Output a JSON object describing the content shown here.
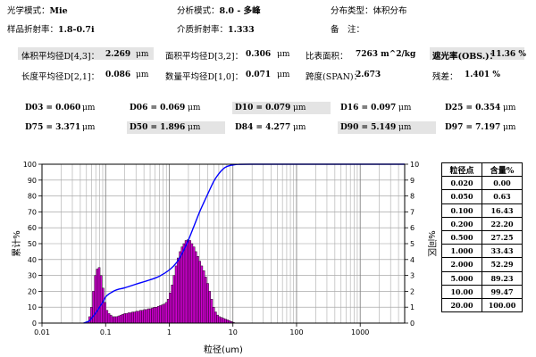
{
  "header": {
    "optical_model_label": "光学模式：",
    "optical_model_value": "Mie",
    "analysis_mode_label": "分析模式：",
    "analysis_mode_value": "8.0 - 多峰",
    "distribution_type_label": "分布类型：",
    "distribution_type_value": "体积分布",
    "sample_ri_label": "样品折射率：",
    "sample_ri_value": "1.8-0.7i",
    "medium_ri_label": "介质折射率：",
    "medium_ri_value": "1.333",
    "remarks_label": "备　注："
  },
  "summary": {
    "d43_label": "体积平均径D[4,3]：",
    "d43_value": "2.269",
    "d43_unit": "μm",
    "d32_label": "面积平均径D[3,2]：",
    "d32_value": "0.306",
    "d32_unit": "μm",
    "ssa_label": "比表面积：",
    "ssa_value": "7263  m^2/kg",
    "obs_label": "遮光率(OBS.)：",
    "obs_value": "11.36 %",
    "d21_label": "长度平均径D[2,1]：",
    "d21_value": "0.086",
    "d21_unit": "μm",
    "d10mean_label": "数量平均径D[1,0]：",
    "d10mean_value": "0.071",
    "d10mean_unit": "μm",
    "span_label": "跨度(SPAN)：",
    "span_value": "2.673",
    "residual_label": "残差：",
    "residual_value": "1.401 %"
  },
  "percentiles": [
    {
      "label": "D03 = 0.060",
      "unit": "μm"
    },
    {
      "label": "D06 = 0.069",
      "unit": "μm"
    },
    {
      "label": "D10 = 0.079",
      "unit": "μm"
    },
    {
      "label": "D16 = 0.097",
      "unit": "μm"
    },
    {
      "label": "D25 = 0.354",
      "unit": "μm"
    },
    {
      "label": "D75 = 3.371",
      "unit": "μm"
    },
    {
      "label": "D50 = 1.896",
      "unit": "μm"
    },
    {
      "label": "D84 = 4.277",
      "unit": "μm"
    },
    {
      "label": "D90 = 5.149",
      "unit": "μm"
    },
    {
      "label": "D97 = 7.197",
      "unit": "μm"
    }
  ],
  "table": {
    "col_size": "粒径点",
    "col_content": "含量%",
    "rows": [
      {
        "size": "0.020",
        "content": "0.00"
      },
      {
        "size": "0.050",
        "content": "0.63"
      },
      {
        "size": "0.100",
        "content": "16.43"
      },
      {
        "size": "0.200",
        "content": "22.20"
      },
      {
        "size": "0.500",
        "content": "27.25"
      },
      {
        "size": "1.000",
        "content": "33.43"
      },
      {
        "size": "2.000",
        "content": "52.29"
      },
      {
        "size": "5.000",
        "content": "89.23"
      },
      {
        "size": "10.00",
        "content": "99.47"
      },
      {
        "size": "20.00",
        "content": "100.00"
      }
    ]
  },
  "chart_data": {
    "type": "bar",
    "xlabel": "粒径(um)",
    "ylabel": "累计%",
    "y2label": "%间区",
    "xscale": "log",
    "xlim": [
      0.01,
      5000
    ],
    "ylim": [
      0,
      100
    ],
    "y2lim": [
      0,
      10
    ],
    "grid": true,
    "x_ticks": [
      "0.01",
      "0.1",
      "1",
      "10",
      "100",
      "1000"
    ],
    "y_ticks": [
      "0",
      "10",
      "20",
      "30",
      "40",
      "50",
      "60",
      "70",
      "80",
      "90",
      "100"
    ],
    "y2_ticks": [
      "0",
      "1",
      "2",
      "3",
      "4",
      "5",
      "6",
      "7",
      "8",
      "9",
      "10"
    ],
    "bar_color": "#cc00cc",
    "line_color": "#0000ff",
    "differential": {
      "x": [
        0.052,
        0.056,
        0.06,
        0.064,
        0.069,
        0.074,
        0.079,
        0.085,
        0.091,
        0.098,
        0.105,
        0.113,
        0.121,
        0.13,
        0.14,
        0.15,
        0.161,
        0.173,
        0.186,
        0.2,
        0.215,
        0.231,
        0.248,
        0.266,
        0.286,
        0.307,
        0.33,
        0.354,
        0.38,
        0.408,
        0.439,
        0.471,
        0.506,
        0.543,
        0.584,
        0.627,
        0.673,
        0.723,
        0.777,
        0.834,
        0.896,
        0.962,
        1.03,
        1.11,
        1.19,
        1.28,
        1.38,
        1.48,
        1.59,
        1.7,
        1.83,
        1.97,
        2.11,
        2.27,
        2.44,
        2.62,
        2.81,
        3.02,
        3.24,
        3.48,
        3.74,
        4.02,
        4.31,
        4.63,
        4.98,
        5.35,
        5.74,
        6.17,
        6.62,
        7.11,
        7.64,
        8.2,
        8.81,
        9.46,
        10.16
      ],
      "y": [
        0.08,
        0.4,
        1.0,
        2.0,
        3.0,
        3.4,
        3.5,
        3.0,
        2.2,
        1.3,
        0.8,
        0.6,
        0.5,
        0.4,
        0.4,
        0.4,
        0.45,
        0.5,
        0.55,
        0.6,
        0.6,
        0.65,
        0.65,
        0.7,
        0.7,
        0.75,
        0.75,
        0.8,
        0.8,
        0.85,
        0.85,
        0.9,
        0.9,
        0.95,
        1.0,
        1.0,
        1.05,
        1.1,
        1.15,
        1.2,
        1.3,
        1.5,
        1.9,
        2.4,
        3.0,
        3.6,
        4.1,
        4.5,
        4.8,
        5.0,
        5.2,
        5.25,
        5.2,
        5.0,
        4.8,
        4.5,
        4.2,
        3.9,
        3.6,
        3.3,
        2.9,
        2.5,
        2.0,
        1.5,
        1.0,
        0.7,
        0.5,
        0.4,
        0.35,
        0.3,
        0.25,
        0.2,
        0.15,
        0.1,
        0.05
      ]
    },
    "cumulative": {
      "x": [
        0.045,
        0.05,
        0.056,
        0.06,
        0.066,
        0.07,
        0.076,
        0.08,
        0.09,
        0.1,
        0.11,
        0.12,
        0.14,
        0.16,
        0.2,
        0.3,
        0.5,
        0.7,
        1.0,
        1.3,
        1.6,
        2.0,
        2.5,
        3.0,
        3.5,
        4.0,
        5.0,
        6.0,
        7.0,
        8.0,
        9.0,
        10.0,
        12.0,
        20.0,
        100.0,
        1000.0,
        5000.0
      ],
      "y": [
        0,
        0.63,
        1.5,
        3,
        5,
        6.5,
        8.5,
        10,
        13,
        16.43,
        18,
        19,
        20.5,
        21.3,
        22.2,
        24.5,
        27.25,
        29.5,
        33.43,
        38,
        44,
        52.29,
        62,
        70,
        76,
        81,
        89.23,
        94,
        97,
        98.5,
        99.2,
        99.47,
        99.9,
        100,
        100,
        100,
        100
      ]
    }
  }
}
